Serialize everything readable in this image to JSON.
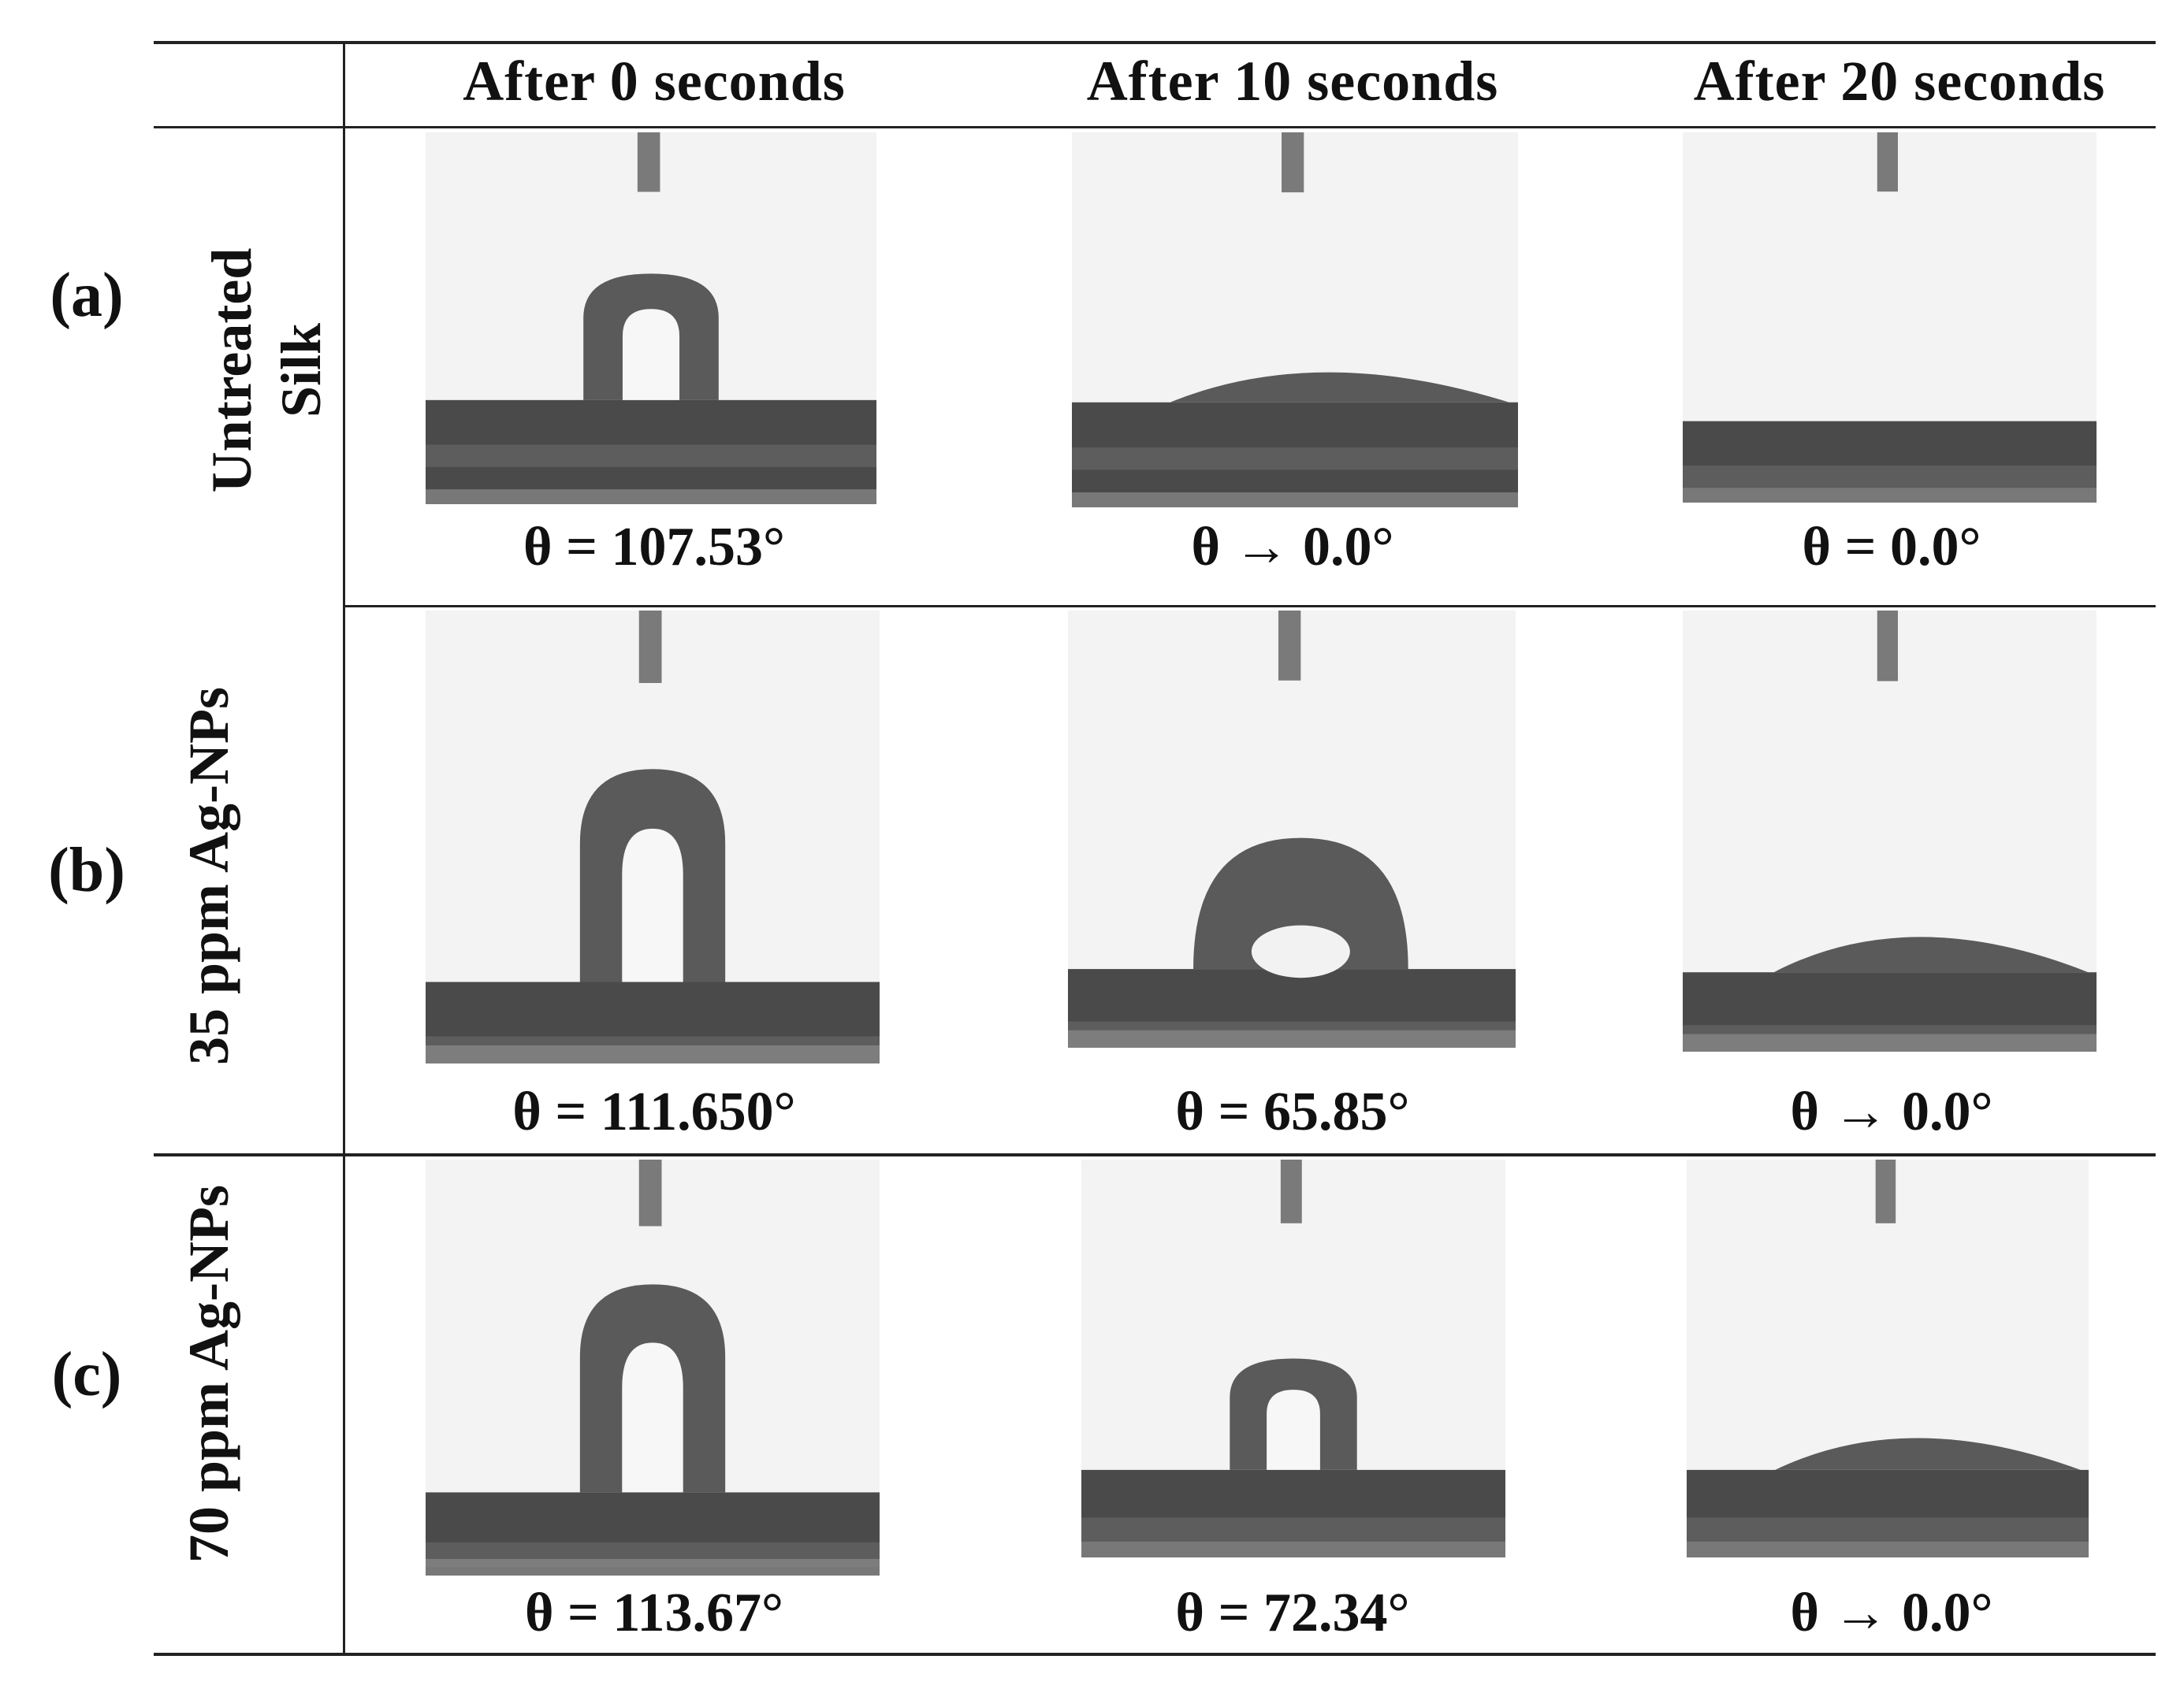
{
  "table": {
    "columns": [
      "After 0 seconds",
      "After 10 seconds",
      "After 20 seconds"
    ],
    "rows": [
      {
        "letter": "(a)",
        "label_line1": "Untreated",
        "label_line2": "Silk",
        "cells": [
          {
            "angle": "θ = 107.53°",
            "drop": "droplet-sphere"
          },
          {
            "angle": "θ → 0.0°",
            "drop": "droplet-flat"
          },
          {
            "angle": "θ = 0.0°",
            "drop": "absorbed"
          }
        ]
      },
      {
        "letter": "(b)",
        "label_line1": "35 ppm Ag-NPs",
        "label_line2": "",
        "cells": [
          {
            "angle": "θ = 111.650°",
            "drop": "droplet-tall"
          },
          {
            "angle": "θ = 65.85°",
            "drop": "droplet-dome"
          },
          {
            "angle": "θ → 0.0°",
            "drop": "droplet-flat"
          }
        ]
      },
      {
        "letter": "(c)",
        "label_line1": "70 ppm Ag-NPs",
        "label_line2": "",
        "cells": [
          {
            "angle": "θ = 113.67°",
            "drop": "droplet-tall"
          },
          {
            "angle": "θ = 72.34°",
            "drop": "droplet-small"
          },
          {
            "angle": "θ → 0.0°",
            "drop": "droplet-flat"
          }
        ]
      }
    ]
  },
  "colors": {
    "background": "#ffffff",
    "image_bg": "#f3f3f3",
    "substrate": "#4a4a4a",
    "droplet": "#5a5a5a",
    "rule": "#222222"
  }
}
